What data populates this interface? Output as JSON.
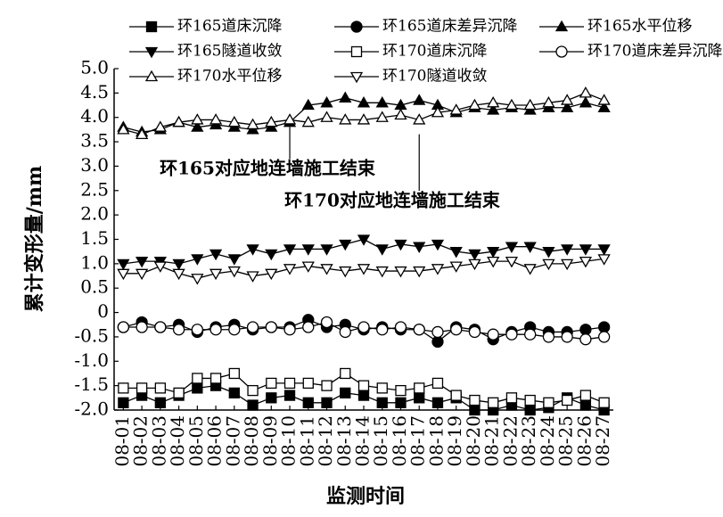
{
  "chart_data": {
    "type": "line",
    "categories": [
      "08-01",
      "08-02",
      "08-03",
      "08-04",
      "08-05",
      "08-06",
      "08-07",
      "08-08",
      "08-09",
      "08-10",
      "08-11",
      "08-12",
      "08-13",
      "08-14",
      "08-15",
      "08-16",
      "08-17",
      "08-18",
      "08-19",
      "08-20",
      "08-21",
      "08-22",
      "08-23",
      "08-24",
      "08-25",
      "08-26",
      "08-27"
    ],
    "x_label": "监测时间",
    "y_label": "累计变形量/mm",
    "ylim": [
      -2,
      5
    ],
    "yticks": [
      {
        "value": -2,
        "label": "-2.0"
      },
      -1.5,
      {
        "value": -1,
        "label": "-1.0"
      },
      -0.5,
      0,
      0.5,
      {
        "value": 1,
        "label": "1.0"
      },
      1.5,
      {
        "value": 2,
        "label": "2.0"
      },
      2.5,
      {
        "value": 3,
        "label": "3.0"
      },
      3.5,
      {
        "value": 4,
        "label": "4.0"
      },
      4.5,
      {
        "value": 5,
        "label": "5.0"
      }
    ],
    "series": [
      {
        "name": "环165道床沉降",
        "color": "#000000",
        "marker": "square",
        "filled": true,
        "values": [
          -1.85,
          -1.7,
          -1.85,
          -1.7,
          -1.55,
          -1.5,
          -1.65,
          -1.9,
          -1.75,
          -1.7,
          -1.85,
          -1.85,
          -1.65,
          -1.7,
          -1.85,
          -1.85,
          -1.75,
          -1.85,
          -1.75,
          -2.0,
          -2.0,
          -1.9,
          -2.0,
          -1.95,
          -1.75,
          -1.9,
          -2.0
        ]
      },
      {
        "name": "环165道床差异沉降",
        "color": "#000000",
        "marker": "circle",
        "filled": true,
        "values": [
          -0.3,
          -0.2,
          -0.3,
          -0.25,
          -0.4,
          -0.3,
          -0.25,
          -0.35,
          -0.3,
          -0.3,
          -0.15,
          -0.3,
          -0.25,
          -0.35,
          -0.3,
          -0.35,
          -0.35,
          -0.6,
          -0.3,
          -0.35,
          -0.55,
          -0.4,
          -0.3,
          -0.4,
          -0.4,
          -0.35,
          -0.3
        ]
      },
      {
        "name": "环165水平位移",
        "color": "#000000",
        "marker": "triangle-up",
        "filled": true,
        "values": [
          3.8,
          3.7,
          3.75,
          3.9,
          3.8,
          3.85,
          3.8,
          3.75,
          3.8,
          3.9,
          4.25,
          4.3,
          4.4,
          4.3,
          4.3,
          4.25,
          4.35,
          4.25,
          4.1,
          4.2,
          4.15,
          4.2,
          4.15,
          4.2,
          4.2,
          4.3,
          4.2
        ]
      },
      {
        "name": "环165隧道收敛",
        "color": "#000000",
        "marker": "triangle-down",
        "filled": true,
        "values": [
          1.0,
          1.05,
          1.05,
          1.0,
          1.1,
          1.2,
          1.1,
          1.3,
          1.2,
          1.3,
          1.3,
          1.3,
          1.4,
          1.5,
          1.3,
          1.4,
          1.35,
          1.4,
          1.25,
          1.2,
          1.25,
          1.35,
          1.35,
          1.25,
          1.3,
          1.3,
          1.3
        ]
      },
      {
        "name": "环170道床沉降",
        "color": "#000000",
        "marker": "square",
        "filled": false,
        "values": [
          -1.55,
          -1.55,
          -1.55,
          -1.65,
          -1.35,
          -1.35,
          -1.25,
          -1.6,
          -1.45,
          -1.45,
          -1.45,
          -1.5,
          -1.25,
          -1.5,
          -1.55,
          -1.6,
          -1.55,
          -1.45,
          -1.7,
          -1.8,
          -1.85,
          -1.75,
          -1.8,
          -1.85,
          -1.8,
          -1.7,
          -1.85
        ]
      },
      {
        "name": "环170道床差异沉降",
        "color": "#000000",
        "marker": "circle",
        "filled": false,
        "values": [
          -0.3,
          -0.3,
          -0.3,
          -0.35,
          -0.35,
          -0.35,
          -0.35,
          -0.3,
          -0.3,
          -0.35,
          -0.3,
          -0.2,
          -0.4,
          -0.3,
          -0.35,
          -0.3,
          -0.35,
          -0.4,
          -0.35,
          -0.4,
          -0.45,
          -0.45,
          -0.45,
          -0.5,
          -0.5,
          -0.55,
          -0.5
        ]
      },
      {
        "name": "环170水平位移",
        "color": "#000000",
        "marker": "triangle-up",
        "filled": false,
        "values": [
          3.75,
          3.65,
          3.8,
          3.9,
          3.95,
          3.95,
          3.9,
          3.85,
          3.9,
          3.95,
          3.9,
          4.0,
          3.95,
          3.95,
          4.0,
          4.05,
          3.95,
          4.1,
          4.15,
          4.25,
          4.3,
          4.25,
          4.25,
          4.3,
          4.35,
          4.5,
          4.35
        ]
      },
      {
        "name": "环170隧道收敛",
        "color": "#000000",
        "marker": "triangle-down",
        "filled": false,
        "values": [
          0.8,
          0.8,
          0.95,
          0.8,
          0.7,
          0.8,
          0.85,
          0.75,
          0.8,
          0.9,
          0.95,
          0.9,
          0.85,
          0.9,
          0.85,
          0.85,
          0.85,
          0.9,
          0.95,
          1.0,
          1.05,
          1.05,
          0.9,
          1.0,
          1.0,
          1.05,
          1.1
        ]
      }
    ],
    "annotations": [
      {
        "text": "环165对应地连墙施工结束",
        "x": "08-10"
      },
      {
        "text": "环170对应地连墙施工结束",
        "x": "08-17"
      }
    ]
  }
}
